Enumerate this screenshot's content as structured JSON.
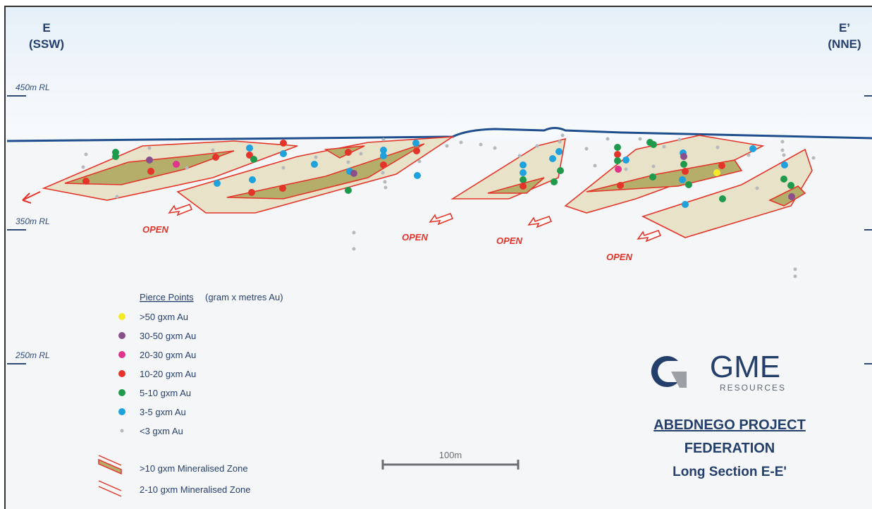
{
  "section": {
    "left_end": {
      "letter": "E",
      "direction": "(SSW)"
    },
    "right_end": {
      "letter": "E’",
      "direction": "(NNE)"
    }
  },
  "rl_labels": [
    "450m RL",
    "350m RL",
    "250m RL"
  ],
  "open_label": "OPEN",
  "legend": {
    "title": "Pierce Points",
    "title_suffix": "(gram x metres Au)",
    "items": [
      {
        "label": ">50 gxm Au",
        "color": "#f5ea2a"
      },
      {
        "label": "30-50 gxm Au",
        "color": "#8b4f8c"
      },
      {
        "label": "20-30 gxm Au",
        "color": "#e0338c"
      },
      {
        "label": "10-20 gxm Au",
        "color": "#e4342a"
      },
      {
        "label": "5-10 gxm Au",
        "color": "#1f9a4c"
      },
      {
        "label": "3-5 gxm Au",
        "color": "#1ea1dc"
      },
      {
        "label": "<3 gxm Au",
        "color": "#b5b8bc"
      }
    ],
    "zones": [
      {
        "label": ">10 gxm Mineralised Zone",
        "fill": "#b5ad6a",
        "outline": "#e4342a"
      },
      {
        "label": "2-10 gxm Mineralised Zone",
        "fill": "none",
        "outline": "#e4342a"
      }
    ]
  },
  "scale_bar": {
    "label": "100m"
  },
  "logo": {
    "name": "GME",
    "sub": "RESOURCES"
  },
  "project": {
    "line1": "ABEDNEGO PROJECT",
    "line2": "FEDERATION",
    "line3": "Long Section E-E'"
  },
  "colors": {
    "surface": "#1f4e8c",
    "zone_outline": "#e4342a",
    "zone_high": "#b5ad6a",
    "zone_low": "#e8e2c8",
    "text": "#253f6b"
  }
}
